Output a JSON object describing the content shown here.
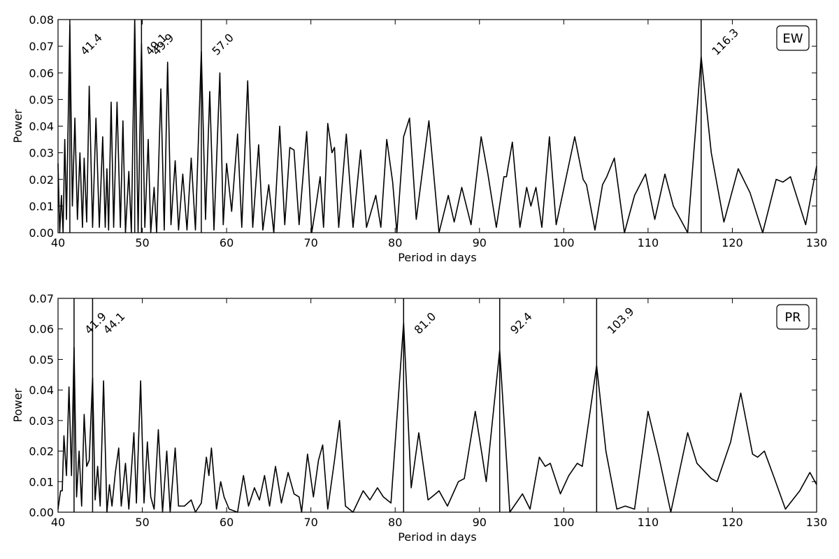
{
  "chart_data": [
    {
      "type": "line",
      "annotation": "EW",
      "xlabel": "Period in days",
      "ylabel": "Power",
      "xlim": [
        40,
        130
      ],
      "ylim": [
        0,
        0.08
      ],
      "xticks": [
        40,
        50,
        60,
        70,
        80,
        90,
        100,
        110,
        120,
        130
      ],
      "yticks": [
        {
          "value": 0,
          "label": "0.00"
        },
        {
          "value": 0.01,
          "label": "0.01"
        },
        {
          "value": 0.02,
          "label": "0.02"
        },
        {
          "value": 0.03,
          "label": "0.03"
        },
        {
          "value": 0.04,
          "label": "0.04"
        },
        {
          "value": 0.05,
          "label": "0.05"
        },
        {
          "value": 0.06,
          "label": "0.06"
        },
        {
          "value": 0.07,
          "label": "0.07"
        },
        {
          "value": 0.08,
          "label": "0.08"
        }
      ],
      "vlines": [
        41.4,
        49.1,
        49.9,
        {
          "value": 57,
          "label": "57.0"
        },
        116.3
      ],
      "x": [
        40.0,
        40.2,
        40.4,
        40.6,
        40.8,
        41.0,
        41.4,
        41.7,
        42.0,
        42.3,
        42.6,
        42.9,
        43.1,
        43.4,
        43.7,
        44.1,
        44.5,
        44.9,
        45.3,
        45.6,
        45.8,
        46.0,
        46.3,
        46.6,
        47.0,
        47.4,
        47.7,
        48.0,
        48.4,
        48.7,
        49.1,
        49.5,
        49.9,
        50.3,
        50.7,
        51.0,
        51.4,
        51.7,
        52.2,
        52.6,
        53.0,
        53.4,
        53.9,
        54.3,
        54.8,
        55.3,
        55.8,
        56.3,
        57.0,
        57.5,
        58.0,
        58.5,
        59.2,
        59.6,
        60.0,
        60.6,
        61.3,
        61.8,
        62.5,
        63.1,
        63.8,
        64.3,
        65.0,
        65.6,
        66.3,
        66.9,
        67.5,
        68.0,
        68.6,
        69.5,
        70.1,
        70.6,
        71.1,
        71.5,
        72.0,
        72.5,
        72.8,
        73.3,
        74.2,
        75.0,
        75.9,
        76.6,
        77.7,
        78.3,
        79.0,
        79.7,
        80.2,
        81.0,
        81.7,
        82.5,
        84.0,
        85.2,
        86.3,
        87.0,
        87.9,
        89.0,
        90.2,
        91.0,
        92.0,
        92.9,
        93.2,
        93.9,
        94.8,
        95.6,
        96.1,
        96.7,
        97.4,
        98.3,
        99.1,
        101.3,
        102.3,
        102.7,
        103.7,
        104.6,
        105.1,
        106.0,
        107.2,
        108.4,
        109.7,
        110.8,
        112.0,
        113.0,
        114.7,
        116.3,
        117.5,
        119.0,
        120.7,
        122.1,
        123.6,
        125.2,
        126.0,
        126.9,
        128.7,
        130.0
      ],
      "series": [
        {
          "color": "#000000",
          "values": [
            0.026,
            0.0,
            0.014,
            0.0,
            0.035,
            0.005,
            0.078,
            0.01,
            0.043,
            0.005,
            0.03,
            0.002,
            0.028,
            0.004,
            0.055,
            0.002,
            0.043,
            0.002,
            0.036,
            0.002,
            0.024,
            0.001,
            0.049,
            0.002,
            0.049,
            0.002,
            0.042,
            0.0,
            0.023,
            0.0,
            0.08,
            0.0,
            0.071,
            0.002,
            0.035,
            0.0,
            0.017,
            0.0,
            0.054,
            0.001,
            0.064,
            0.003,
            0.027,
            0.001,
            0.022,
            0.001,
            0.028,
            0.001,
            0.068,
            0.005,
            0.053,
            0.001,
            0.06,
            0.003,
            0.026,
            0.008,
            0.037,
            0.002,
            0.057,
            0.002,
            0.033,
            0.001,
            0.018,
            0.0,
            0.04,
            0.003,
            0.032,
            0.031,
            0.003,
            0.038,
            0.0,
            0.01,
            0.021,
            0.002,
            0.041,
            0.03,
            0.032,
            0.002,
            0.037,
            0.002,
            0.031,
            0.002,
            0.014,
            0.002,
            0.035,
            0.019,
            0.0,
            0.036,
            0.043,
            0.005,
            0.042,
            0.0,
            0.014,
            0.004,
            0.017,
            0.003,
            0.036,
            0.022,
            0.002,
            0.021,
            0.021,
            0.034,
            0.002,
            0.017,
            0.01,
            0.017,
            0.002,
            0.036,
            0.003,
            0.036,
            0.02,
            0.018,
            0.001,
            0.018,
            0.021,
            0.028,
            0.0,
            0.014,
            0.022,
            0.005,
            0.022,
            0.01,
            0.0,
            0.066,
            0.03,
            0.004,
            0.024,
            0.015,
            0.0,
            0.02,
            0.019,
            0.021,
            0.003,
            0.025
          ]
        }
      ]
    },
    {
      "type": "line",
      "annotation": "PR",
      "xlabel": "Period in days",
      "ylabel": "Power",
      "xlim": [
        40,
        130
      ],
      "ylim": [
        0,
        0.07
      ],
      "xticks": [
        40,
        50,
        60,
        70,
        80,
        90,
        100,
        110,
        120,
        130
      ],
      "yticks": [
        {
          "value": 0,
          "label": "0.00"
        },
        {
          "value": 0.01,
          "label": "0.01"
        },
        {
          "value": 0.02,
          "label": "0.02"
        },
        {
          "value": 0.03,
          "label": "0.03"
        },
        {
          "value": 0.04,
          "label": "0.04"
        },
        {
          "value": 0.05,
          "label": "0.05"
        },
        {
          "value": 0.06,
          "label": "0.06"
        },
        {
          "value": 0.07,
          "label": "0.07"
        }
      ],
      "vlines": [
        41.9,
        44.1,
        {
          "value": 81,
          "label": "81.0"
        },
        92.4,
        103.9
      ],
      "x": [
        40.0,
        40.3,
        40.5,
        40.7,
        41.0,
        41.3,
        41.6,
        41.9,
        42.2,
        42.5,
        42.8,
        43.1,
        43.4,
        43.7,
        44.1,
        44.4,
        44.7,
        45.0,
        45.4,
        45.8,
        46.1,
        46.4,
        46.8,
        47.2,
        47.5,
        48.0,
        48.4,
        49.0,
        49.3,
        49.8,
        50.2,
        50.6,
        51.0,
        51.4,
        51.9,
        52.4,
        52.9,
        53.3,
        53.9,
        54.3,
        55.0,
        55.8,
        56.3,
        57.0,
        57.6,
        57.9,
        58.2,
        58.8,
        59.3,
        59.7,
        60.3,
        61.3,
        62.0,
        62.6,
        63.3,
        63.9,
        64.5,
        65.1,
        65.8,
        66.5,
        67.3,
        68.0,
        68.6,
        68.9,
        69.6,
        70.3,
        70.9,
        71.4,
        72.0,
        72.8,
        73.4,
        74.1,
        75.0,
        76.2,
        77.0,
        77.9,
        78.6,
        79.5,
        81.0,
        81.9,
        82.8,
        83.9,
        84.8,
        85.2,
        86.2,
        87.5,
        88.2,
        89.5,
        90.8,
        92.4,
        93.6,
        95.1,
        96.0,
        97.1,
        97.8,
        98.4,
        99.6,
        100.6,
        101.6,
        102.2,
        103.9,
        105.0,
        106.3,
        107.3,
        108.4,
        110.0,
        111.3,
        112.7,
        114.7,
        115.8,
        117.5,
        118.2,
        119.8,
        121.0,
        122.4,
        123.0,
        123.8,
        125.0,
        126.3,
        128.0,
        129.2,
        130.0
      ],
      "series": [
        {
          "color": "#000000",
          "values": [
            0.001,
            0.007,
            0.007,
            0.025,
            0.012,
            0.041,
            0.012,
            0.054,
            0.005,
            0.02,
            0.002,
            0.032,
            0.015,
            0.017,
            0.044,
            0.004,
            0.015,
            0.002,
            0.043,
            0.0,
            0.009,
            0.002,
            0.013,
            0.021,
            0.002,
            0.016,
            0.001,
            0.026,
            0.003,
            0.043,
            0.003,
            0.023,
            0.005,
            0.001,
            0.027,
            0.0,
            0.02,
            0.0,
            0.021,
            0.002,
            0.002,
            0.004,
            0.0,
            0.003,
            0.018,
            0.012,
            0.021,
            0.001,
            0.01,
            0.005,
            0.001,
            0.0,
            0.012,
            0.002,
            0.008,
            0.004,
            0.012,
            0.002,
            0.015,
            0.003,
            0.013,
            0.006,
            0.005,
            0.0,
            0.019,
            0.005,
            0.017,
            0.022,
            0.001,
            0.017,
            0.03,
            0.002,
            0.0,
            0.007,
            0.004,
            0.008,
            0.005,
            0.003,
            0.062,
            0.008,
            0.026,
            0.004,
            0.006,
            0.007,
            0.002,
            0.01,
            0.011,
            0.033,
            0.01,
            0.053,
            0.0,
            0.006,
            0.001,
            0.018,
            0.015,
            0.016,
            0.006,
            0.012,
            0.016,
            0.015,
            0.048,
            0.02,
            0.001,
            0.002,
            0.001,
            0.033,
            0.018,
            0.0,
            0.026,
            0.016,
            0.011,
            0.01,
            0.023,
            0.039,
            0.019,
            0.018,
            0.02,
            0.011,
            0.001,
            0.007,
            0.013,
            0.009
          ]
        }
      ]
    }
  ]
}
